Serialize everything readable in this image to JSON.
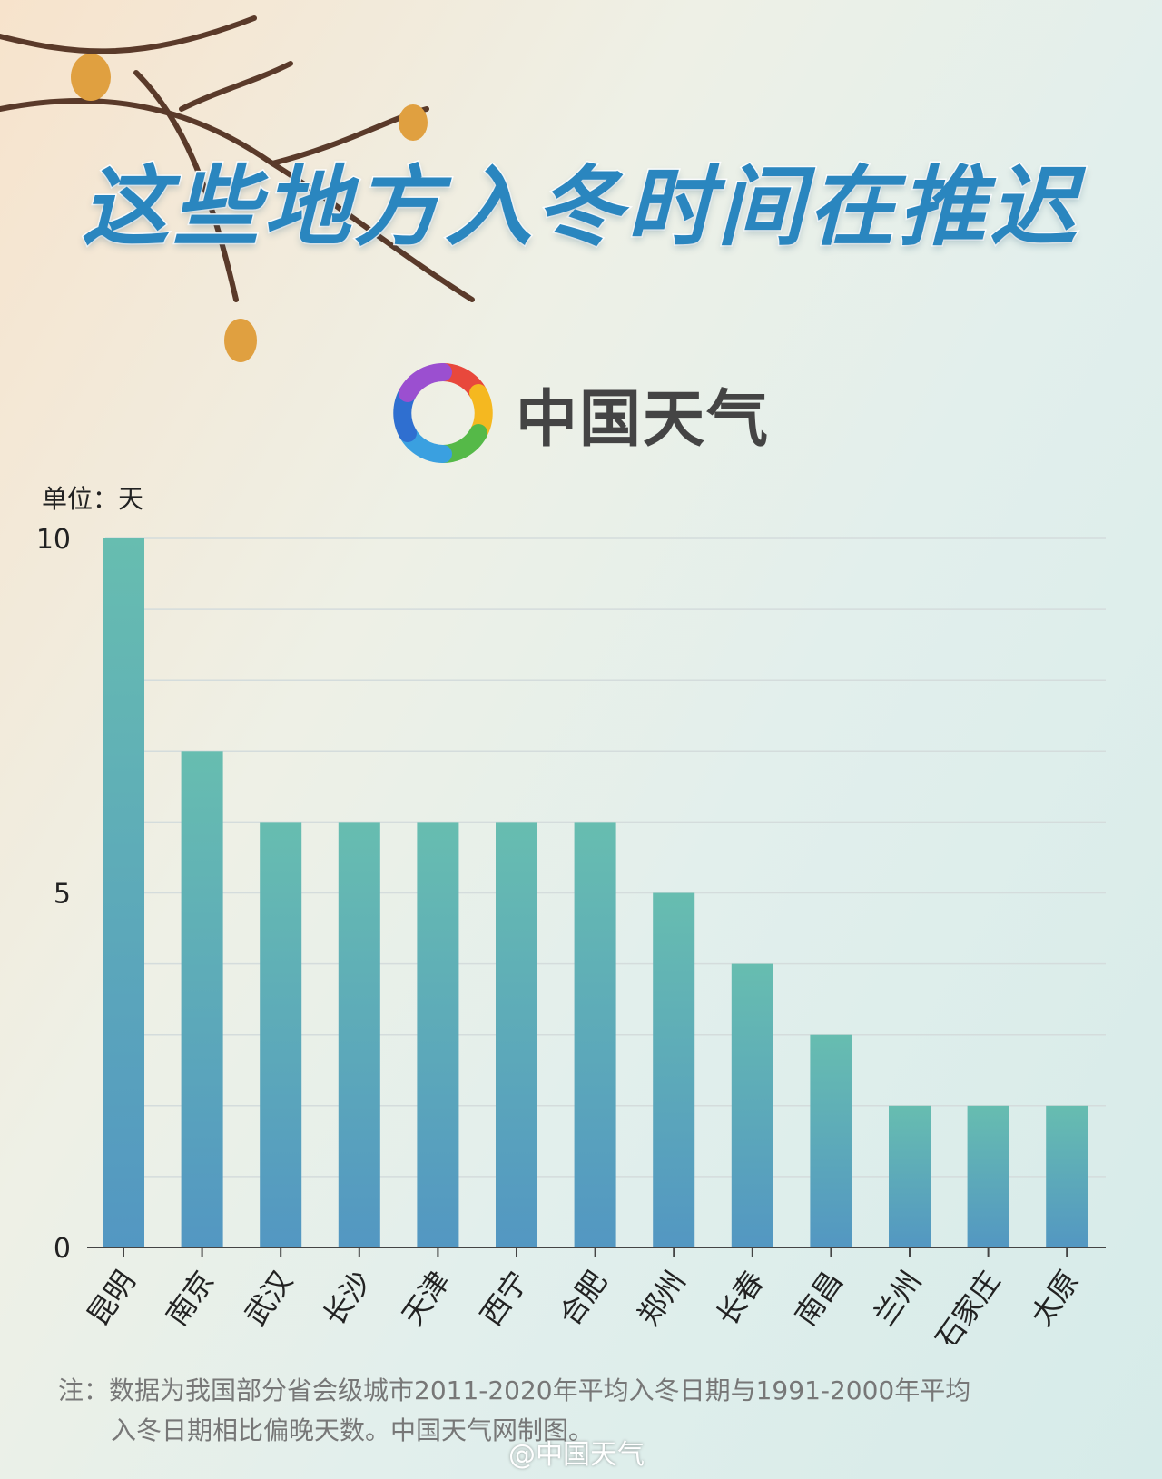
{
  "title": "这些地方入冬时间在推迟",
  "logo": {
    "text": "中国天气",
    "icon": "china-weather-swirl-logo"
  },
  "credit": "@中国天气",
  "note": {
    "line1": "注：数据为我国部分省会级城市2011-2020年平均入冬日期与1991-2000年平均",
    "line2": "入冬日期相比偏晚天数。中国天气网制图。"
  },
  "chart_data": {
    "type": "bar",
    "ylabel": "单位：天",
    "categories": [
      "昆明",
      "南京",
      "武汉",
      "长沙",
      "天津",
      "西宁",
      "合肥",
      "郑州",
      "长春",
      "南昌",
      "兰州",
      "石家庄",
      "太原"
    ],
    "values": [
      10,
      7,
      6,
      6,
      6,
      6,
      6,
      5,
      4,
      3,
      2,
      2,
      2
    ],
    "ylim": [
      0,
      10
    ],
    "yticks": [
      0,
      5,
      10
    ],
    "grid": true,
    "colors": {
      "bar_top": "#67bdb0",
      "bar_bottom": "#5397c2"
    }
  }
}
